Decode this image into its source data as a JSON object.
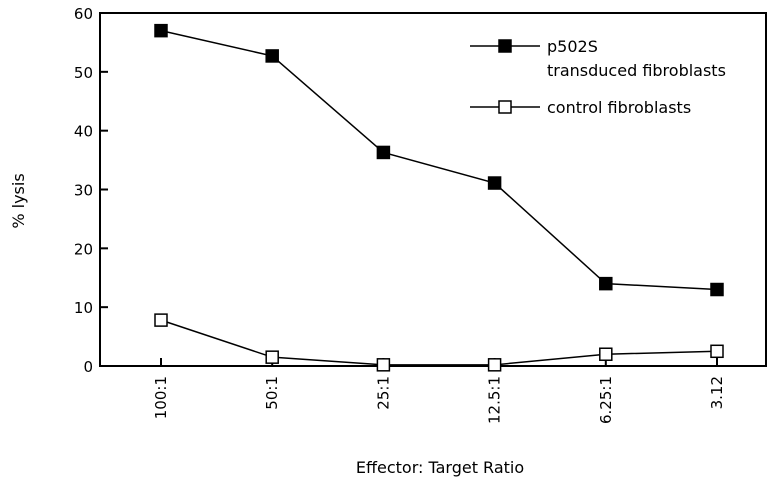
{
  "chart_data": {
    "type": "line",
    "categories": [
      "100:1",
      "50:1",
      "25:1",
      "12.5:1",
      "6.25:1",
      "3.12"
    ],
    "series": [
      {
        "name": "p502S transduced fibroblasts",
        "legend_lines": [
          "p502S",
          "transduced fibroblasts"
        ],
        "marker": "filled-square",
        "values": [
          57,
          52.7,
          36.3,
          31.1,
          14,
          13
        ]
      },
      {
        "name": "control fibroblasts",
        "legend_lines": [
          "control fibroblasts"
        ],
        "marker": "open-square",
        "values": [
          7.8,
          1.5,
          0.2,
          0.2,
          2,
          2.5
        ]
      }
    ],
    "title": "",
    "xlabel": "Effector: Target Ratio",
    "ylabel": "% lysis",
    "ylim": [
      0,
      60
    ],
    "yticks": [
      0,
      10,
      20,
      30,
      40,
      50,
      60
    ],
    "grid": false,
    "legend_position": "top-right",
    "colors": {
      "line": "#000000",
      "background": "#ffffff"
    }
  }
}
